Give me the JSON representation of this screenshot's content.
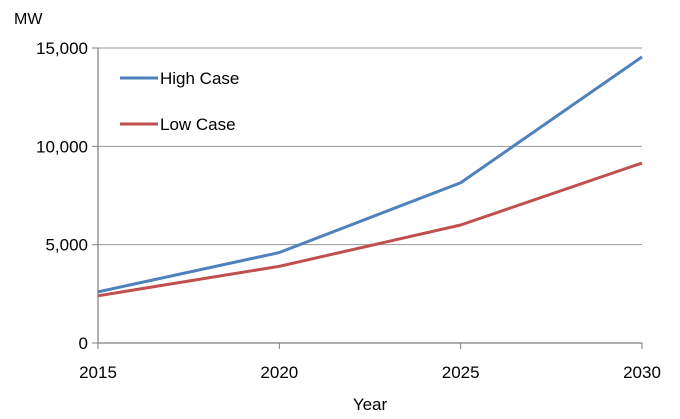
{
  "chart_data": {
    "type": "line",
    "title": "",
    "xlabel": "Year",
    "ylabel": "MW",
    "x": [
      2015,
      2020,
      2025,
      2030
    ],
    "xlim": [
      2015,
      2030
    ],
    "ylim": [
      0,
      15000
    ],
    "yticks": [
      0,
      5000,
      10000,
      15000
    ],
    "ytick_labels": [
      "0",
      "5,000",
      "10,000",
      "15,000"
    ],
    "xtick_labels": [
      "2015",
      "2020",
      "2025",
      "2030"
    ],
    "grid": "horizontal",
    "legend_position": "top-left",
    "series": [
      {
        "name": "High Case",
        "color": "#4F81BD",
        "values": [
          2600,
          4600,
          8150,
          14550
        ]
      },
      {
        "name": "Low Case",
        "color": "#C0504D",
        "values": [
          2400,
          3900,
          6000,
          9150
        ]
      }
    ]
  }
}
